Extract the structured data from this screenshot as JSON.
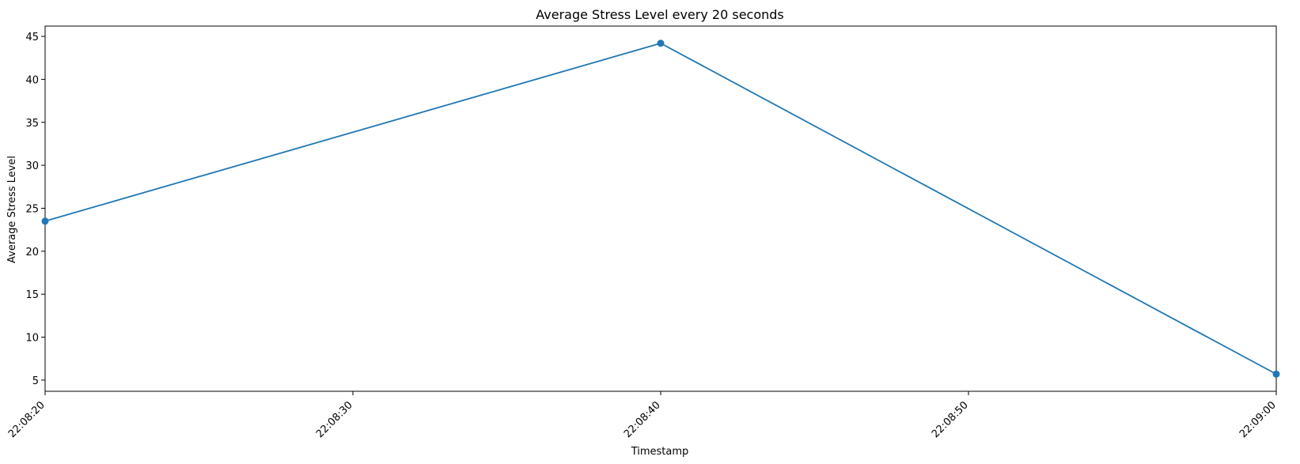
{
  "chart_data": {
    "type": "line",
    "title": "Average Stress Level every 20 seconds",
    "xlabel": "Timestamp",
    "ylabel": "Average Stress Level",
    "x": [
      "22:08:20",
      "22:08:40",
      "22:09:00"
    ],
    "series": [
      {
        "values": [
          23.5,
          44.2,
          5.7
        ],
        "color": "#1f77b4",
        "marker": "circle"
      }
    ],
    "xlim": [
      "22:08:20",
      "22:09:00"
    ],
    "ylim": [
      3.7,
      46.2
    ],
    "x_ticks": [
      "22:08:20",
      "22:08:30",
      "22:08:40",
      "22:08:50",
      "22:09:00"
    ],
    "y_ticks": [
      5,
      10,
      15,
      20,
      25,
      30,
      35,
      40,
      45
    ],
    "x_tick_rotation": 45,
    "grid": false,
    "legend": "none"
  }
}
